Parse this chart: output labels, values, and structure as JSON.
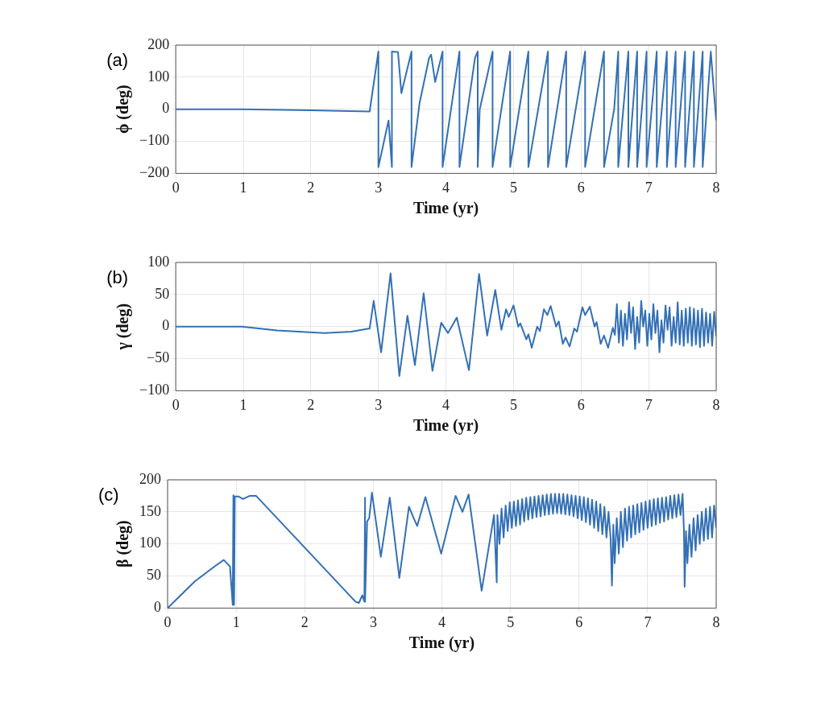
{
  "chart_data": [
    {
      "type": "line",
      "xlabel": "Time (yr)",
      "ylabel": "ϕ (deg)",
      "annotations": [
        "(a)"
      ],
      "color": "#3370b5",
      "grid": true,
      "xlim": [
        0,
        8
      ],
      "xticks": [
        0,
        1,
        2,
        3,
        4,
        5,
        6,
        7,
        8
      ],
      "ylim": [
        -200,
        200
      ],
      "yticks": [
        -200,
        -100,
        0,
        100,
        200
      ],
      "x": [
        0,
        1,
        2,
        2.87,
        3.0,
        3.0,
        3.15,
        3.2,
        3.2,
        3.29,
        3.34,
        3.49,
        3.49,
        3.61,
        3.75,
        3.78,
        3.84,
        3.95,
        3.95,
        4.2,
        4.2,
        4.43,
        4.47,
        4.47,
        4.5,
        4.69,
        4.69,
        4.95,
        4.95,
        5.22,
        5.22,
        5.51,
        5.51,
        5.78,
        5.78,
        6.06,
        6.06,
        6.34,
        6.34,
        6.49,
        6.55,
        6.55,
        6.7,
        6.7,
        6.83,
        6.83,
        6.97,
        6.97,
        7.12,
        7.12,
        7.27,
        7.27,
        7.4,
        7.4,
        7.54,
        7.54,
        7.67,
        7.67,
        7.8,
        7.8,
        7.92,
        8.0
      ],
      "values": [
        0,
        0,
        -3,
        -7,
        180,
        -180,
        -35,
        -180,
        180,
        178,
        50,
        180,
        -180,
        20,
        160,
        170,
        85,
        180,
        -180,
        180,
        -180,
        160,
        180,
        -180,
        0,
        180,
        -180,
        180,
        -180,
        180,
        -180,
        180,
        -180,
        180,
        -180,
        180,
        -180,
        180,
        -180,
        0,
        180,
        -180,
        180,
        -180,
        180,
        -180,
        180,
        -180,
        180,
        -180,
        180,
        -180,
        180,
        -180,
        180,
        -180,
        180,
        -180,
        180,
        -180,
        180,
        -35
      ]
    },
    {
      "type": "line",
      "xlabel": "Time (yr)",
      "ylabel": "γ (deg)",
      "annotations": [
        "(b)"
      ],
      "color": "#3370b5",
      "grid": true,
      "xlim": [
        0,
        8
      ],
      "xticks": [
        0,
        1,
        2,
        3,
        4,
        5,
        6,
        7,
        8
      ],
      "ylim": [
        -100,
        100
      ],
      "yticks": [
        -100,
        -50,
        0,
        50,
        100
      ],
      "x": [
        0,
        0.98,
        1.5,
        2.2,
        2.6,
        2.87,
        2.93,
        3.04,
        3.18,
        3.31,
        3.43,
        3.54,
        3.67,
        3.8,
        3.93,
        4.03,
        4.16,
        4.34,
        4.49,
        4.61,
        4.73,
        4.82,
        4.89,
        4.93,
        5.0,
        5.07,
        5.1,
        5.19,
        5.22,
        5.27,
        5.35,
        5.39,
        5.45,
        5.5,
        5.55,
        5.63,
        5.67,
        5.73,
        5.77,
        5.83,
        5.9,
        5.94,
        6.02,
        6.06,
        6.13,
        6.2,
        6.23,
        6.29,
        6.34,
        6.4,
        6.47,
        6.5,
        6.53,
        6.56,
        6.59,
        6.62,
        6.65,
        6.68,
        6.71,
        6.74,
        6.77,
        6.8,
        6.83,
        6.86,
        6.89,
        6.92,
        6.95,
        6.98,
        7.01,
        7.04,
        7.07,
        7.1,
        7.13,
        7.16,
        7.19,
        7.22,
        7.25,
        7.28,
        7.31,
        7.34,
        7.37,
        7.4,
        7.43,
        7.46,
        7.49,
        7.52,
        7.55,
        7.58,
        7.61,
        7.64,
        7.67,
        7.7,
        7.73,
        7.76,
        7.79,
        7.82,
        7.85,
        7.88,
        7.91,
        7.94,
        7.97,
        8.0
      ],
      "values": [
        0,
        0,
        -6,
        -10,
        -8,
        -3,
        40,
        -40,
        83,
        -77,
        17,
        -60,
        52,
        -69,
        6,
        -10,
        14,
        -68,
        82,
        -14,
        57,
        -5,
        27,
        15,
        33,
        0,
        5,
        -20,
        -12,
        -33,
        0,
        -7,
        27,
        18,
        32,
        0,
        8,
        -27,
        -17,
        -31,
        -3,
        -8,
        30,
        18,
        31,
        0,
        7,
        -27,
        -14,
        -33,
        -2,
        -13,
        35,
        -25,
        25,
        -30,
        20,
        -20,
        38,
        -10,
        30,
        -35,
        15,
        -25,
        40,
        0,
        25,
        -30,
        20,
        -20,
        35,
        -10,
        25,
        -40,
        10,
        -25,
        33,
        -5,
        30,
        -30,
        15,
        -25,
        38,
        -28,
        25,
        -30,
        28,
        -25,
        30,
        -30,
        28,
        -28,
        25,
        -32,
        28,
        -30,
        22,
        -25,
        20,
        -30,
        23,
        -15
      ]
    },
    {
      "type": "line",
      "xlabel": "Time (yr)",
      "ylabel": "β (deg)",
      "annotations": [
        "(c)"
      ],
      "color": "#3370b5",
      "grid": true,
      "xlim": [
        0,
        8
      ],
      "xticks": [
        0,
        1,
        2,
        3,
        4,
        5,
        6,
        7,
        8
      ],
      "ylim": [
        0,
        200
      ],
      "yticks": [
        0,
        50,
        100,
        150,
        200
      ],
      "x": [
        0,
        0.4,
        0.7,
        0.82,
        0.91,
        0.95,
        0.96,
        0.97,
        0.98,
        1.03,
        1.1,
        1.2,
        1.29,
        2.74,
        2.79,
        2.84,
        2.87,
        2.88,
        2.88,
        2.91,
        2.94,
        2.98,
        3.11,
        3.24,
        3.38,
        3.52,
        3.59,
        3.64,
        3.76,
        3.99,
        4.2,
        4.3,
        4.39,
        4.58,
        4.76,
        4.8,
        4.81,
        4.84,
        4.87,
        4.9,
        4.93,
        4.96,
        4.99,
        5.02,
        5.05,
        5.08,
        5.11,
        5.14,
        5.17,
        5.2,
        5.23,
        5.26,
        5.29,
        5.32,
        5.35,
        5.38,
        5.41,
        5.44,
        5.47,
        5.5,
        5.53,
        5.56,
        5.59,
        5.62,
        5.65,
        5.68,
        5.71,
        5.74,
        5.77,
        5.8,
        5.83,
        5.86,
        5.89,
        5.92,
        5.95,
        5.98,
        6.01,
        6.04,
        6.07,
        6.1,
        6.13,
        6.16,
        6.19,
        6.22,
        6.25,
        6.28,
        6.31,
        6.34,
        6.37,
        6.4,
        6.43,
        6.46,
        6.48,
        6.5,
        6.52,
        6.55,
        6.58,
        6.61,
        6.64,
        6.67,
        6.7,
        6.73,
        6.76,
        6.79,
        6.82,
        6.85,
        6.88,
        6.91,
        6.94,
        6.97,
        7.0,
        7.03,
        7.06,
        7.09,
        7.12,
        7.15,
        7.18,
        7.21,
        7.24,
        7.27,
        7.3,
        7.33,
        7.36,
        7.39,
        7.42,
        7.45,
        7.48,
        7.51,
        7.53,
        7.54,
        7.56,
        7.58,
        7.61,
        7.64,
        7.67,
        7.7,
        7.73,
        7.76,
        7.79,
        7.82,
        7.85,
        7.88,
        7.91,
        7.94,
        7.97,
        8.0
      ],
      "values": [
        0,
        42,
        66,
        75,
        65,
        5,
        176,
        5,
        174,
        174,
        170,
        175,
        175,
        10,
        8,
        20,
        10,
        172,
        10,
        135,
        140,
        180,
        80,
        172,
        47,
        158,
        140,
        128,
        173,
        85,
        175,
        150,
        177,
        27,
        145,
        40,
        145,
        100,
        155,
        110,
        160,
        120,
        165,
        125,
        166,
        128,
        168,
        130,
        170,
        135,
        172,
        138,
        173,
        140,
        174,
        142,
        175,
        143,
        176,
        145,
        177,
        146,
        178,
        147,
        178,
        148,
        178,
        147,
        178,
        146,
        177,
        145,
        176,
        143,
        175,
        140,
        174,
        137,
        173,
        134,
        171,
        130,
        169,
        125,
        166,
        120,
        162,
        115,
        158,
        110,
        150,
        110,
        35,
        130,
        70,
        140,
        85,
        150,
        95,
        155,
        105,
        158,
        110,
        160,
        115,
        162,
        118,
        164,
        122,
        166,
        125,
        168,
        128,
        170,
        130,
        171,
        133,
        172,
        135,
        173,
        138,
        175,
        140,
        176,
        142,
        177,
        145,
        178,
        120,
        33,
        120,
        70,
        130,
        80,
        140,
        90,
        145,
        100,
        150,
        105,
        155,
        108,
        158,
        110,
        160,
        125
      ]
    }
  ]
}
